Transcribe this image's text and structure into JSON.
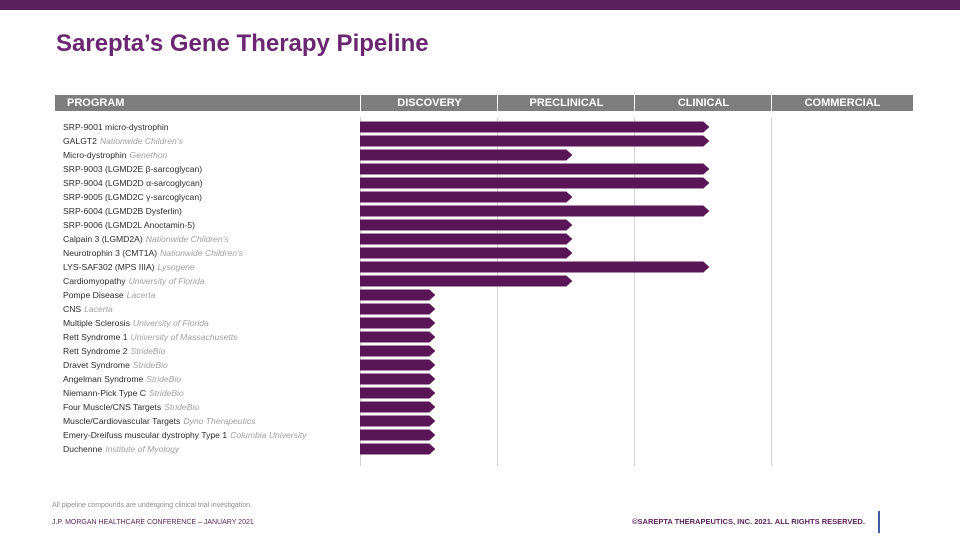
{
  "title": "Sarepta’s Gene Therapy Pipeline",
  "colors": {
    "bar": "#5a1556",
    "title": "#6a2670",
    "header": "#7e7e7e",
    "topbar": "#5c1f5e"
  },
  "footer": {
    "note": "All pipeline compounds are undergoing clinical trial investigation.",
    "conference": "J.P. MORGAN HEALTHCARE CONFERENCE – JANUARY 2021",
    "copyright": "©SAREPTA THERAPEUTICS, INC. 2021.  ALL RIGHTS RESERVED."
  },
  "chart_data": {
    "type": "bar",
    "orientation": "horizontal",
    "columns": [
      "PROGRAM",
      "DISCOVERY",
      "PRECLINICAL",
      "CLINICAL",
      "COMMERCIAL"
    ],
    "stages": [
      "DISCOVERY",
      "PRECLINICAL",
      "CLINICAL",
      "COMMERCIAL"
    ],
    "programs": [
      {
        "name": "SRP-9001 micro-dystrophin",
        "partner": "",
        "progress": 2.55
      },
      {
        "name": "GALGT2",
        "partner": "Nationwide Children’s",
        "progress": 2.55
      },
      {
        "name": "Micro-dystrophin",
        "partner": "Genethon",
        "progress": 1.55
      },
      {
        "name": "SRP-9003 (LGMD2E β-sarcoglycan)",
        "partner": "",
        "progress": 2.55
      },
      {
        "name": "SRP-9004 (LGMD2D α-sarcoglycan)",
        "partner": "",
        "progress": 2.55
      },
      {
        "name": "SRP-9005 (LGMD2C γ-sarcoglycan)",
        "partner": "",
        "progress": 1.55
      },
      {
        "name": "SRP-6004 (LGMD2B Dysferlin)",
        "partner": "",
        "progress": 2.55
      },
      {
        "name": "SRP-9006 (LGMD2L Anoctamin-5)",
        "partner": "",
        "progress": 1.55
      },
      {
        "name": "Calpain 3 (LGMD2A)",
        "partner": "Nationwide Children’s",
        "progress": 1.55
      },
      {
        "name": "Neurotrophin 3 (CMT1A)",
        "partner": "Nationwide Children’s",
        "progress": 1.55
      },
      {
        "name": "LYS-SAF302 (MPS IIIA)",
        "partner": "Lysogene",
        "progress": 2.55
      },
      {
        "name": "Cardiomyopathy",
        "partner": "University of Florida",
        "progress": 1.55
      },
      {
        "name": "Pompe Disease",
        "partner": "Lacerta",
        "progress": 0.55
      },
      {
        "name": "CNS",
        "partner": "Lacerta",
        "progress": 0.55
      },
      {
        "name": "Multiple Sclerosis",
        "partner": "University of Florida",
        "progress": 0.55
      },
      {
        "name": "Rett Syndrome 1",
        "partner": "University of Massachusetts",
        "progress": 0.55
      },
      {
        "name": "Rett Syndrome 2",
        "partner": "StrideBio",
        "progress": 0.55
      },
      {
        "name": "Dravet Syndrome",
        "partner": "StrideBio",
        "progress": 0.55
      },
      {
        "name": "Angelman Syndrome",
        "partner": "StrideBio",
        "progress": 0.55
      },
      {
        "name": "Niemann-Pick Type C",
        "partner": "StrideBio",
        "progress": 0.55
      },
      {
        "name": "Four Muscle/CNS Targets",
        "partner": "StrideBio",
        "progress": 0.55
      },
      {
        "name": "Muscle/Cardiovascular Targets",
        "partner": "Dyno Therapeutics",
        "progress": 0.55
      },
      {
        "name": "Emery-Dreifuss muscular dystrophy Type 1",
        "partner": "Columbia University",
        "progress": 0.55
      },
      {
        "name": "Duchenne",
        "partner": "Institute of Myology",
        "progress": 0.55
      }
    ]
  }
}
